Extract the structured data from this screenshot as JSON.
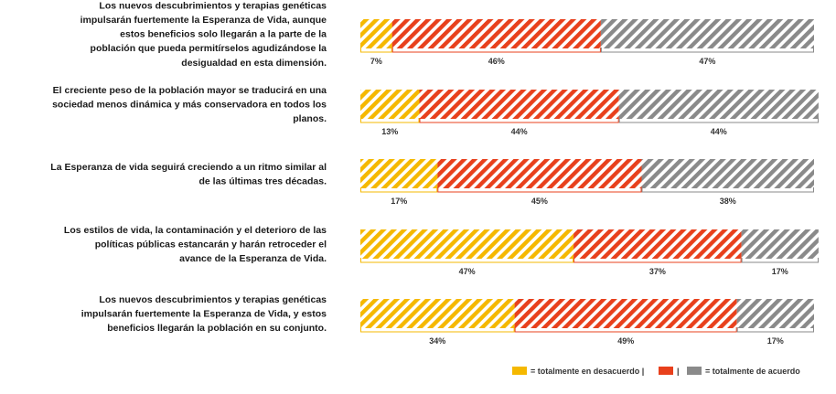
{
  "chart_data": {
    "type": "bar",
    "orientation": "horizontal",
    "stacked": true,
    "normalized": true,
    "categories": [
      "Los nuevos descubrimientos y terapias genéticas impulsarán fuertemente la Esperanza de Vida, aunque estos beneficios solo llegarán a la parte de la población que pueda permitírselos agudizándose la desigualdad en esta dimensión.",
      "El creciente peso de la población mayor se traducirá en una sociedad menos dinámica y más conservadora en todos los planos.",
      "La Esperanza de vida seguirá creciendo a un ritmo similar al de las últimas tres décadas.",
      "Los estilos de vida, la contaminación y el deterioro de las políticas públicas estancarán y harán retroceder el avance de la Esperanza de Vida.",
      "Los nuevos descubrimientos y terapias genéticas impulsarán fuertemente la Esperanza de Vida, y estos beneficios llegarán la población en su conjunto."
    ],
    "category_lines": [
      [
        "Los nuevos descubrimientos y terapias genéticas",
        "impulsarán fuertemente la Esperanza de Vida, aunque",
        "estos beneficios solo llegarán a la parte de la",
        "población que pueda permitírselos agudizándose la",
        "desigualdad en esta dimensión."
      ],
      [
        "El creciente peso de la población mayor se traducirá en una",
        "sociedad menos dinámica y más conservadora en todos los",
        "planos."
      ],
      [
        "La Esperanza de vida seguirá creciendo a un ritmo similar al",
        "de las últimas tres décadas."
      ],
      [
        "Los estilos de vida, la contaminación y el deterioro de las",
        "políticas públicas estancarán y harán retroceder el",
        "avance de la Esperanza de Vida."
      ],
      [
        "Los nuevos descubrimientos y terapias genéticas",
        "impulsarán fuertemente la Esperanza de Vida, y estos",
        "beneficios llegarán la población en su conjunto."
      ]
    ],
    "series": [
      {
        "name": "totalmente en desacuerdo",
        "color": "#f5b800",
        "values": [
          7,
          13,
          17,
          47,
          34
        ]
      },
      {
        "name": "",
        "color": "#e8401c",
        "values": [
          46,
          44,
          45,
          37,
          49
        ]
      },
      {
        "name": "totalmente de acuerdo",
        "color": "#8a8a8a",
        "values": [
          47,
          44,
          38,
          17,
          17
        ]
      }
    ],
    "value_suffix": "%",
    "legend": {
      "position": "bottom-right",
      "items": [
        {
          "label": "= totalmente en desacuerdo |",
          "color": "#f5b800"
        },
        {
          "label": "|",
          "color": "#e8401c"
        },
        {
          "label": "= totalmente de acuerdo",
          "color": "#8a8a8a"
        }
      ]
    }
  }
}
